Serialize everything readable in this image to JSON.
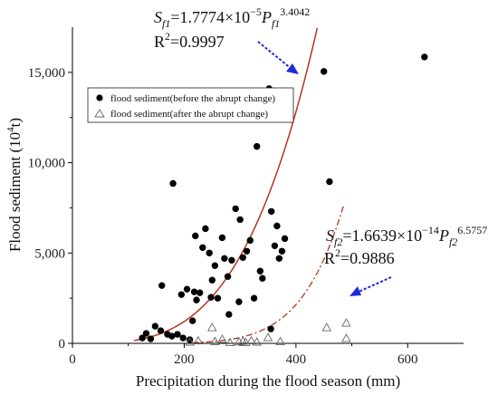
{
  "chart_data": {
    "type": "scatter",
    "xlabel": "Precipitation during the flood season (mm)",
    "ylabel_main": "Flood sediment (10",
    "ylabel_sup": "4",
    "ylabel_tail": "t)",
    "xlim": [
      0,
      700
    ],
    "ylim": [
      0,
      17500
    ],
    "x_ticks": [
      0,
      200,
      400,
      600
    ],
    "x_tick_labels": [
      "0",
      "200",
      "400",
      "600"
    ],
    "y_ticks": [
      0,
      5000,
      10000,
      15000
    ],
    "y_tick_labels": [
      "0",
      "5,000",
      "10,000",
      "15,000"
    ],
    "grid": false,
    "legend_position": "upper-left",
    "series": [
      {
        "name": "flood sediment(before the abrupt change)",
        "marker": "filled-circle",
        "color": "#000000",
        "points": [
          [
            125,
            300
          ],
          [
            132,
            550
          ],
          [
            140,
            250
          ],
          [
            148,
            950
          ],
          [
            158,
            700
          ],
          [
            160,
            3200
          ],
          [
            170,
            500
          ],
          [
            178,
            400
          ],
          [
            180,
            8850
          ],
          [
            188,
            500
          ],
          [
            195,
            2700
          ],
          [
            198,
            300
          ],
          [
            205,
            3000
          ],
          [
            210,
            200
          ],
          [
            215,
            1250
          ],
          [
            218,
            2850
          ],
          [
            220,
            5950
          ],
          [
            222,
            2400
          ],
          [
            228,
            2800
          ],
          [
            233,
            5300
          ],
          [
            238,
            6350
          ],
          [
            245,
            5000
          ],
          [
            248,
            2550
          ],
          [
            250,
            3500
          ],
          [
            255,
            4300
          ],
          [
            260,
            2500
          ],
          [
            268,
            5850
          ],
          [
            272,
            4700
          ],
          [
            278,
            3700
          ],
          [
            280,
            1600
          ],
          [
            285,
            4600
          ],
          [
            292,
            7450
          ],
          [
            298,
            2300
          ],
          [
            300,
            6850
          ],
          [
            305,
            4750
          ],
          [
            312,
            5100
          ],
          [
            318,
            5700
          ],
          [
            325,
            2500
          ],
          [
            330,
            10900
          ],
          [
            336,
            4000
          ],
          [
            340,
            3600
          ],
          [
            352,
            14100
          ],
          [
            356,
            7300
          ],
          [
            362,
            5400
          ],
          [
            366,
            6500
          ],
          [
            370,
            4700
          ],
          [
            375,
            5100
          ],
          [
            380,
            5800
          ],
          [
            355,
            800
          ],
          [
            450,
            15050
          ],
          [
            460,
            8950
          ],
          [
            630,
            15850
          ]
        ]
      },
      {
        "name": "flood sediment(after the abrupt change)",
        "marker": "open-triangle",
        "color": "#666666",
        "points": [
          [
            210,
            50
          ],
          [
            225,
            120
          ],
          [
            250,
            850
          ],
          [
            255,
            80
          ],
          [
            268,
            200
          ],
          [
            282,
            20
          ],
          [
            298,
            60
          ],
          [
            305,
            100
          ],
          [
            310,
            30
          ],
          [
            320,
            120
          ],
          [
            330,
            50
          ],
          [
            350,
            300
          ],
          [
            372,
            80
          ],
          [
            455,
            850
          ],
          [
            490,
            1100
          ],
          [
            490,
            250
          ]
        ]
      }
    ],
    "fits": [
      {
        "label": "S_f1 fit",
        "coefficient": 1.7774e-05,
        "exponent": 3.4042,
        "color": "#b5361e",
        "style": "solid",
        "x_range": [
          110,
          438
        ]
      },
      {
        "label": "S_f2 fit",
        "coefficient": 1.6639e-14,
        "exponent": 6.5757,
        "color": "#b5361e",
        "style": "dashdot",
        "x_range": [
          215,
          485
        ]
      }
    ],
    "annotations": {
      "eq1": {
        "S": "S",
        "sub": "f1",
        "mid": "=1.7774×10",
        "exp_sup": "−5",
        "P": "P",
        "psub": "f1",
        "psup": "3.4042"
      },
      "r1": {
        "R": "R",
        "sup": "2",
        "val": "=0.9997"
      },
      "eq2": {
        "S": "S",
        "sub": "f2",
        "mid": "=1.6639×10",
        "exp_sup": "−14",
        "P": "P",
        "psub": "f2",
        "psup": "6.5757"
      },
      "r2": {
        "R": "R",
        "sup": "2",
        "val": "=0.9886"
      },
      "arrow_color": "#1f2bd6"
    }
  }
}
